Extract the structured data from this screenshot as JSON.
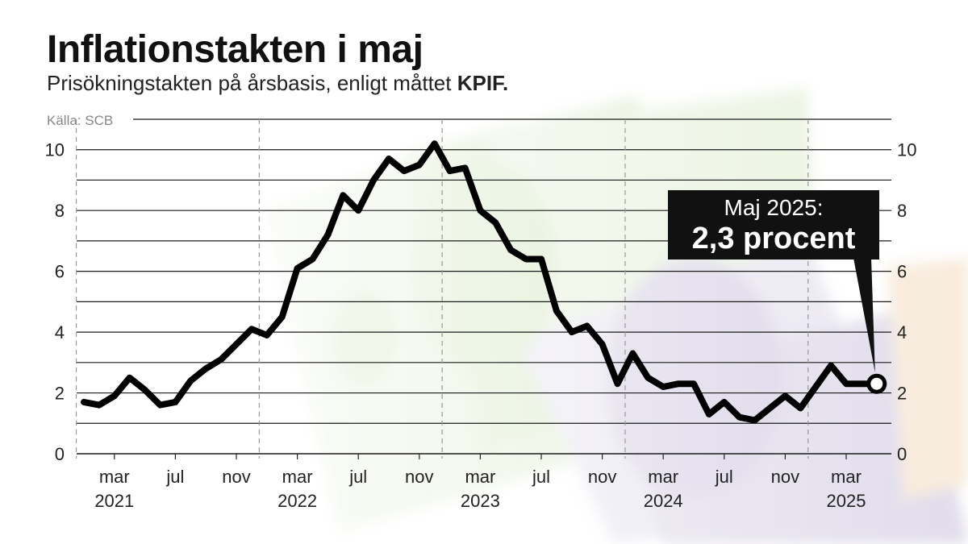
{
  "header": {
    "title": "Inflationstakten i maj",
    "subtitle_text": "Prisökningstakten på årsbasis, enligt måttet",
    "subtitle_bold": "KPIF.",
    "source": "Källa: SCB"
  },
  "callout": {
    "line1": "Maj 2025:",
    "line2": "2,3 procent"
  },
  "colors": {
    "line": "#000000",
    "grid": "#1a1a1a",
    "divider": "#999999",
    "callout_bg": "#111111"
  },
  "chart_data": {
    "type": "line",
    "title": "Inflationstakten i maj",
    "subtitle": "Prisökningstakten på årsbasis, enligt måttet KPIF.",
    "source": "Källa: SCB",
    "grid": true,
    "ylim": [
      0,
      11
    ],
    "yticks": [
      0,
      2,
      4,
      6,
      8,
      10
    ],
    "x_tick_labels": [
      {
        "label": "mar",
        "date": "2021-03"
      },
      {
        "label": "jul",
        "date": "2021-07"
      },
      {
        "label": "nov",
        "date": "2021-11"
      },
      {
        "label": "mar",
        "date": "2022-03"
      },
      {
        "label": "jul",
        "date": "2022-07"
      },
      {
        "label": "nov",
        "date": "2022-11"
      },
      {
        "label": "mar",
        "date": "2023-03"
      },
      {
        "label": "jul",
        "date": "2023-07"
      },
      {
        "label": "nov",
        "date": "2023-11"
      },
      {
        "label": "mar",
        "date": "2024-03"
      },
      {
        "label": "jul",
        "date": "2024-07"
      },
      {
        "label": "nov",
        "date": "2024-11"
      },
      {
        "label": "mar",
        "date": "2025-03"
      }
    ],
    "year_labels": [
      "2021",
      "2022",
      "2023",
      "2024",
      "2025"
    ],
    "series": [
      {
        "x": [
          "2021-01",
          "2021-02",
          "2021-03",
          "2021-04",
          "2021-05",
          "2021-06",
          "2021-07",
          "2021-08",
          "2021-09",
          "2021-10",
          "2021-11",
          "2021-12",
          "2022-01",
          "2022-02",
          "2022-03",
          "2022-04",
          "2022-05",
          "2022-06",
          "2022-07",
          "2022-08",
          "2022-09",
          "2022-10",
          "2022-11",
          "2022-12",
          "2023-01",
          "2023-02",
          "2023-03",
          "2023-04",
          "2023-05",
          "2023-06",
          "2023-07",
          "2023-08",
          "2023-09",
          "2023-10",
          "2023-11",
          "2023-12",
          "2024-01",
          "2024-02",
          "2024-03",
          "2024-04",
          "2024-05",
          "2024-06",
          "2024-07",
          "2024-08",
          "2024-09",
          "2024-10",
          "2024-11",
          "2024-12",
          "2025-01",
          "2025-02",
          "2025-03",
          "2025-04",
          "2025-05"
        ],
        "values": [
          1.7,
          1.6,
          1.9,
          2.5,
          2.1,
          1.6,
          1.7,
          2.4,
          2.8,
          3.1,
          3.6,
          4.1,
          3.9,
          4.5,
          6.1,
          6.4,
          7.2,
          8.5,
          8.0,
          9.0,
          9.7,
          9.3,
          9.5,
          10.2,
          9.3,
          9.4,
          8.0,
          7.6,
          6.7,
          6.4,
          6.4,
          4.7,
          4.0,
          4.2,
          3.6,
          2.3,
          3.3,
          2.5,
          2.2,
          2.3,
          2.3,
          1.3,
          1.7,
          1.2,
          1.1,
          1.5,
          1.9,
          1.5,
          2.2,
          2.9,
          2.3,
          2.3,
          2.3
        ]
      }
    ],
    "annotation": {
      "date": "2025-05",
      "value": 2.3,
      "text": "Maj 2025: 2,3 procent"
    }
  }
}
